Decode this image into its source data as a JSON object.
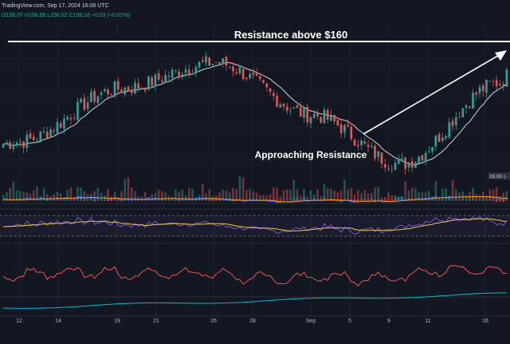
{
  "header": {
    "source": "TradingView.com, Sep 17, 2024 16:08 UTC",
    "ohlc": "O156.07  H156.56  L156.02  C156.18  +0.03 (+0.02%)"
  },
  "colors": {
    "background": "#131722",
    "up": "#26a69a",
    "down": "#ef5350",
    "annotation": "#ffffff",
    "ma": "#d1d4dc",
    "macd_line": "#2962ff",
    "signal_line": "#ff9800",
    "rsi_line": "#7e57c2",
    "rsi_ma": "#f5c842",
    "osc_line": "#ef5350",
    "lower_line": "#00bcd4"
  },
  "annotations": {
    "resistance": "Resistance above $160",
    "approaching": "Approaching Resistance"
  },
  "volume_badge": "28.90 (-",
  "chart_data": {
    "type": "candlestick",
    "x_axis_ticks": [
      "12",
      "14",
      "19",
      "21",
      "26",
      "28",
      "Sep",
      "5",
      "9",
      "11",
      "16"
    ],
    "price_range": [
      140,
      162
    ],
    "resistance_level": 160,
    "key_points": [
      {
        "x": "Aug 12",
        "close": 146.5
      },
      {
        "x": "Aug 19",
        "close": 154.5
      },
      {
        "x": "Aug 26",
        "close": 158.5
      },
      {
        "x": "Sep 3",
        "close": 150.5
      },
      {
        "x": "Sep 9",
        "close": 143.0
      },
      {
        "x": "Sep 16",
        "close": 155.5
      }
    ],
    "ma_length_note": "",
    "grid": true
  }
}
